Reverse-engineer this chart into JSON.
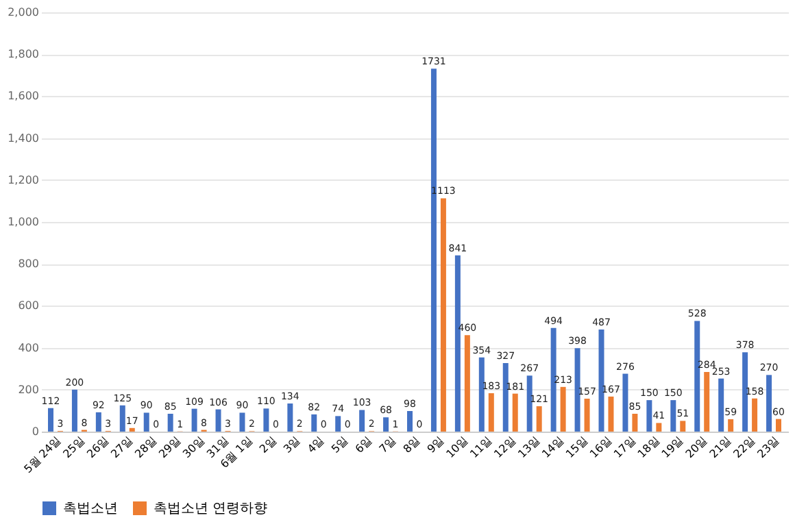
{
  "chart_data": {
    "type": "bar",
    "categories": [
      "5월 24일",
      "25일",
      "26일",
      "27일",
      "28일",
      "29일",
      "30일",
      "31일",
      "6월 1일",
      "2일",
      "3일",
      "4일",
      "5일",
      "6일",
      "7일",
      "8일",
      "9일",
      "10일",
      "11일",
      "12일",
      "13일",
      "14일",
      "15일",
      "16일",
      "17일",
      "18일",
      "19일",
      "20일",
      "21일",
      "22일",
      "23일"
    ],
    "series": [
      {
        "name": "촉법소년",
        "color": "#4472c4",
        "values": [
          112,
          200,
          92,
          125,
          90,
          85,
          109,
          106,
          90,
          110,
          134,
          82,
          74,
          103,
          68,
          98,
          1731,
          841,
          354,
          327,
          267,
          494,
          398,
          487,
          276,
          150,
          150,
          528,
          253,
          378,
          270
        ]
      },
      {
        "name": "촉법소년 연령하향",
        "color": "#ed7d31",
        "values": [
          3,
          8,
          3,
          17,
          0,
          1,
          8,
          3,
          2,
          0,
          2,
          0,
          0,
          2,
          1,
          0,
          1113,
          460,
          183,
          181,
          121,
          213,
          157,
          167,
          85,
          41,
          51,
          284,
          59,
          158,
          60
        ]
      }
    ],
    "ylim": [
      0,
      2000
    ],
    "yticks": [
      0,
      200,
      400,
      600,
      800,
      {
        "value": 1000,
        "label": "1,000"
      },
      {
        "value": 1200,
        "label": "1,200"
      },
      {
        "value": 1400,
        "label": "1,400"
      },
      {
        "value": 1600,
        "label": "1,600"
      },
      {
        "value": 1800,
        "label": "1,800"
      },
      {
        "value": 2000,
        "label": "2,000"
      }
    ],
    "grid": "y",
    "legend": "bottom",
    "data_labels": true
  }
}
